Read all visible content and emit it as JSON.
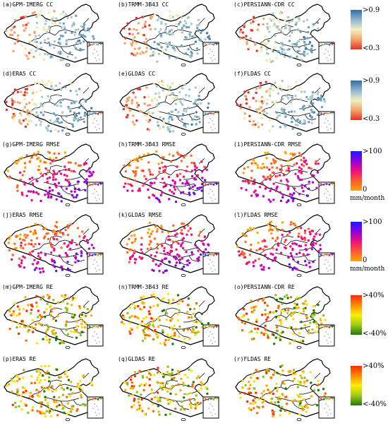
{
  "figure": {
    "panels": [
      {
        "label": "(a)GPM-IMERG CC",
        "metric": "cc",
        "seed": 11
      },
      {
        "label": "(b)TRMM-3B43 CC",
        "metric": "cc",
        "seed": 12
      },
      {
        "label": "(c)PERSIANN-CDR CC",
        "metric": "cc",
        "seed": 13
      },
      {
        "label": "(d)ERA5 CC",
        "metric": "cc",
        "seed": 14
      },
      {
        "label": "(e)GLDAS CC",
        "metric": "cc",
        "seed": 15
      },
      {
        "label": "(f)FLDAS CC",
        "metric": "cc",
        "seed": 16
      },
      {
        "label": "(g)GPM-IMERG RMSE",
        "metric": "rmse",
        "seed": 21
      },
      {
        "label": "(h)TRMM-3B43 RMSE",
        "metric": "rmse",
        "seed": 22
      },
      {
        "label": "(i)PERSIANN-CDR RMSE",
        "metric": "rmse",
        "seed": 23
      },
      {
        "label": "(j)ERA5 RMSE",
        "metric": "rmse",
        "seed": 24
      },
      {
        "label": "(k)GLDAS RMSE",
        "metric": "rmse",
        "seed": 25
      },
      {
        "label": "(l)FLDAS RMSE",
        "metric": "rmse",
        "seed": 26
      },
      {
        "label": "(m)GPM-IMERG RE",
        "metric": "re",
        "seed": 31
      },
      {
        "label": "(n)TRMM-3B43 RE",
        "metric": "re",
        "seed": 32
      },
      {
        "label": "(o)PERSIANN-CDR RE",
        "metric": "re",
        "seed": 33
      },
      {
        "label": "(p)ERA5 RE",
        "metric": "re",
        "seed": 34
      },
      {
        "label": "(q)GLDAS RE",
        "metric": "re",
        "seed": 35
      },
      {
        "label": "(r)FLDAS RE",
        "metric": "re",
        "seed": 36
      }
    ]
  },
  "colorbars": [
    {
      "top_label": ">0.9",
      "bottom_label": "<0.3",
      "unit": "",
      "colors": [
        "#2e6da8",
        "#8fb6cf",
        "#f2f0c4",
        "#f3a36a",
        "#e8302a"
      ]
    },
    {
      "top_label": ">0.9",
      "bottom_label": "<0.3",
      "unit": "",
      "colors": [
        "#2e6da8",
        "#8fb6cf",
        "#f2f0c4",
        "#f3a36a",
        "#e8302a"
      ]
    },
    {
      "top_label": ">100",
      "bottom_label": "0",
      "unit": "mm/month",
      "colors": [
        "#1a1aff",
        "#9000e0",
        "#f0107a",
        "#ff5a30",
        "#ffa500"
      ]
    },
    {
      "top_label": ">100",
      "bottom_label": "0",
      "unit": "mm/month",
      "colors": [
        "#1a1aff",
        "#9000e0",
        "#f0107a",
        "#ff5a30",
        "#ffa500"
      ]
    },
    {
      "top_label": ">40%",
      "bottom_label": "<-40%",
      "unit": "",
      "colors": [
        "#ff2a00",
        "#ff8c00",
        "#ffee00",
        "#9ecb1a",
        "#1f7a0a"
      ]
    },
    {
      "top_label": ">40%",
      "bottom_label": "<-40%",
      "unit": "",
      "colors": [
        "#ff2a00",
        "#ff8c00",
        "#ffee00",
        "#9ecb1a",
        "#1f7a0a"
      ]
    }
  ],
  "palettes": {
    "cc": [
      "#e8302a",
      "#f3a36a",
      "#f2e9a8",
      "#a9c9c9",
      "#6a9fc4",
      "#3f7ab0"
    ],
    "rmse": [
      "#ffa500",
      "#ff6a20",
      "#f0107a",
      "#c000c8",
      "#6010f0",
      "#2a2aff"
    ],
    "re": [
      "#1f7a0a",
      "#8cc21a",
      "#ffe000",
      "#ffb000",
      "#ff6a00",
      "#ff2a00"
    ]
  }
}
